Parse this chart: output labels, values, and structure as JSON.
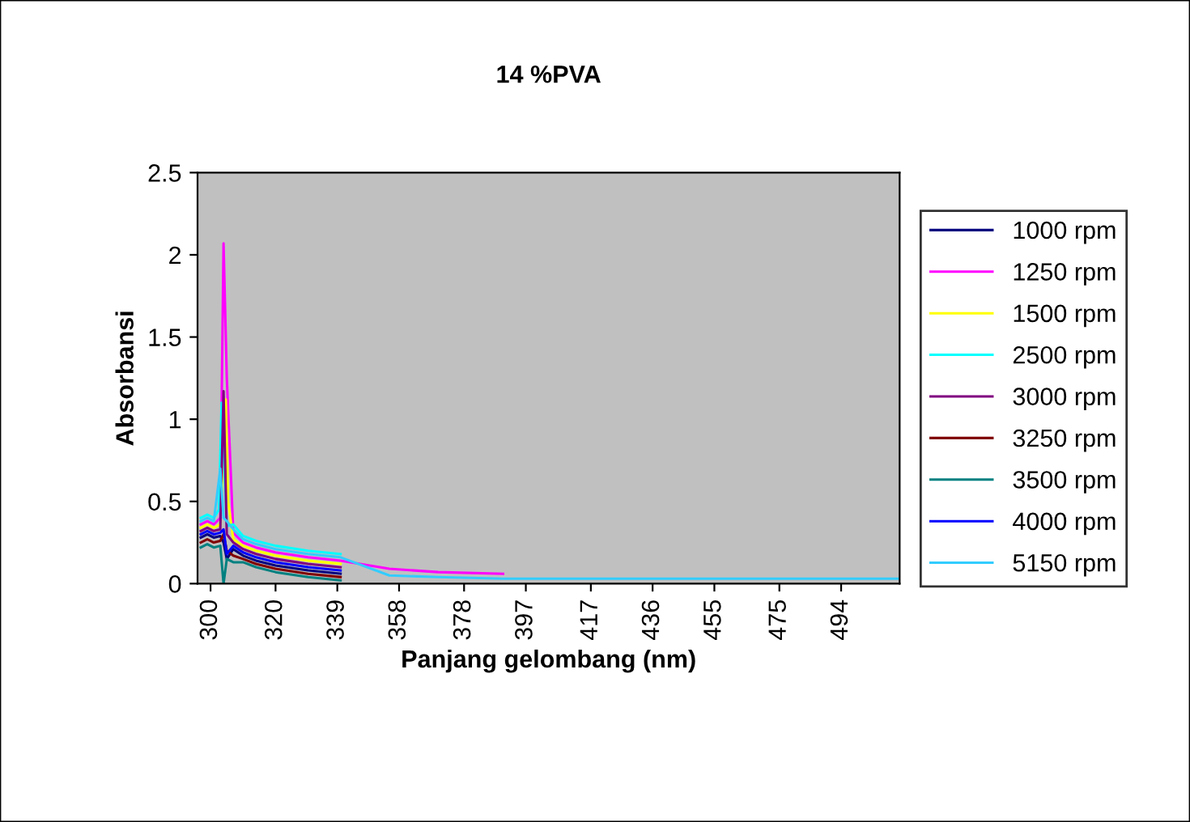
{
  "chart_data": {
    "type": "line",
    "title": "14 %PVA",
    "xlabel": "Panjang gelombang (nm)",
    "ylabel": "Absorbansi",
    "x": [
      297,
      299,
      301,
      303,
      304,
      305,
      307,
      310,
      314,
      320,
      330,
      340,
      355,
      370,
      390,
      420,
      460,
      512
    ],
    "series": [
      {
        "name": "1000 rpm",
        "color": "#000080",
        "values": [
          0.28,
          0.3,
          0.28,
          0.29,
          0.25,
          0.15,
          0.21,
          0.17,
          0.14,
          0.11,
          0.08,
          0.06,
          null,
          null,
          null,
          null,
          null,
          null
        ]
      },
      {
        "name": "1250 rpm",
        "color": "#ff00ff",
        "values": [
          0.36,
          0.38,
          0.36,
          0.4,
          2.07,
          1.25,
          0.31,
          0.25,
          0.22,
          0.19,
          0.16,
          0.14,
          0.09,
          0.07,
          0.06,
          null,
          null,
          null
        ]
      },
      {
        "name": "1500 rpm",
        "color": "#ffff00",
        "x": [
          297,
          299,
          301,
          303,
          304.7,
          305.4,
          307,
          310,
          314,
          320,
          330,
          340
        ],
        "values": [
          0.34,
          0.36,
          0.34,
          0.36,
          1.12,
          0.5,
          0.27,
          0.23,
          0.2,
          0.17,
          0.14,
          0.12
        ]
      },
      {
        "name": "2500 rpm",
        "color": "#00ffff",
        "x": [
          297,
          299,
          301,
          302.6,
          303.4,
          305,
          307,
          310,
          314,
          320,
          330,
          340
        ],
        "values": [
          0.4,
          0.42,
          0.4,
          0.45,
          1.1,
          0.35,
          0.36,
          0.29,
          0.26,
          0.23,
          0.2,
          0.18
        ]
      },
      {
        "name": "3000 rpm",
        "color": "#800080",
        "values": [
          0.32,
          0.34,
          0.32,
          0.33,
          1.17,
          0.3,
          0.25,
          0.21,
          0.18,
          0.15,
          0.12,
          0.1,
          null,
          null,
          null,
          null,
          null,
          null
        ]
      },
      {
        "name": "3250 rpm",
        "color": "#800000",
        "values": [
          0.25,
          0.27,
          0.25,
          0.26,
          0.3,
          0.2,
          0.17,
          0.15,
          0.12,
          0.09,
          0.06,
          0.04,
          null,
          null,
          null,
          null,
          null,
          null
        ]
      },
      {
        "name": "3500 rpm",
        "color": "#008080",
        "values": [
          0.22,
          0.24,
          0.22,
          0.23,
          0.0,
          0.15,
          0.13,
          0.13,
          0.1,
          0.07,
          0.04,
          0.02,
          null,
          null,
          null,
          null,
          null,
          null
        ]
      },
      {
        "name": "4000 rpm",
        "color": "#0000ff",
        "values": [
          0.3,
          0.32,
          0.3,
          0.31,
          0.33,
          0.18,
          0.23,
          0.19,
          0.16,
          0.13,
          0.1,
          0.08,
          null,
          null,
          null,
          null,
          null,
          null
        ]
      },
      {
        "name": "5150 rpm",
        "color": "#33ccff",
        "values": [
          0.38,
          0.4,
          0.38,
          0.7,
          0.4,
          0.38,
          0.33,
          0.27,
          0.24,
          0.21,
          0.18,
          0.16,
          0.05,
          0.04,
          0.03,
          0.03,
          0.03,
          0.03
        ]
      }
    ],
    "xlim": [
      296,
      512
    ],
    "xticks": [
      300,
      320,
      339,
      358,
      378,
      397,
      417,
      436,
      455,
      475,
      494
    ],
    "ylim": [
      0,
      2.5
    ],
    "yticks": [
      0,
      0.5,
      1,
      1.5,
      2,
      2.5
    ],
    "grid": false,
    "legend": "right"
  }
}
